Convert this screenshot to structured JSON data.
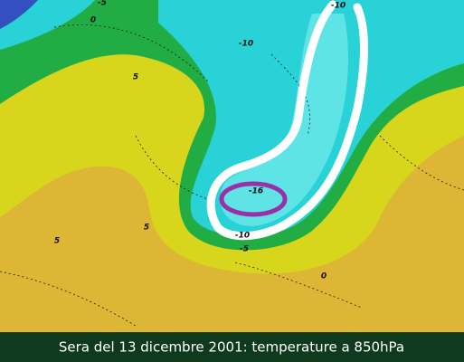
{
  "caption": "Sera del 13 dicembre 2001: temperature a 850hPa",
  "contour_labels": [
    "-5",
    "0",
    "-10",
    "-10",
    "5",
    "5",
    "5",
    "-16",
    "-10",
    "-5",
    "0"
  ]
}
